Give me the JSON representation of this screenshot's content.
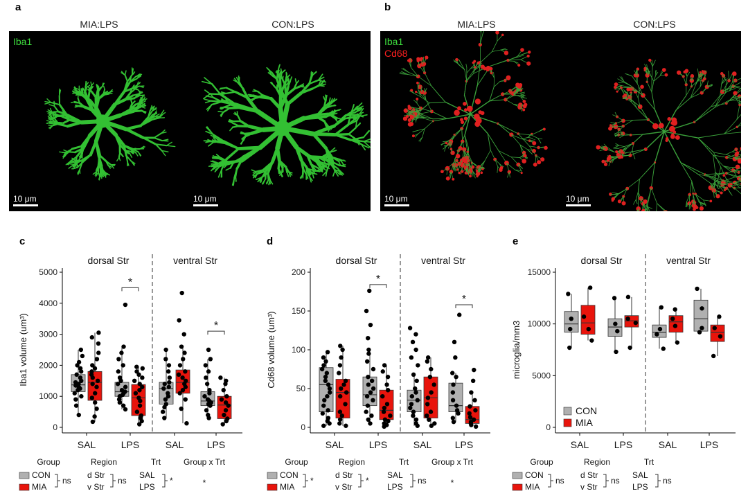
{
  "panels": {
    "a": {
      "label": "a",
      "captions": [
        "MIA:LPS",
        "CON:LPS"
      ],
      "channels": [
        {
          "name": "Iba1",
          "color": "#3ddc3d"
        }
      ],
      "scalebar": "10 μm"
    },
    "b": {
      "label": "b",
      "captions": [
        "MIA:LPS",
        "CON:LPS"
      ],
      "channels": [
        {
          "name": "Iba1",
          "color": "#3ddc3d"
        },
        {
          "name": "Cd68",
          "color": "#ff2020"
        }
      ],
      "scalebar": "10 μm"
    }
  },
  "colors": {
    "con": "#b0b0b0",
    "mia": "#e8140c"
  },
  "chart_data": [
    {
      "panel": "c",
      "type": "box",
      "ylabel": "Iba1 volume (um³)",
      "ylim": [
        0,
        5000
      ],
      "yticks": [
        0,
        1000,
        2000,
        3000,
        4000,
        5000
      ],
      "regions": [
        "dorsal Str",
        "ventral Str"
      ],
      "categories": [
        "SAL",
        "LPS",
        "SAL",
        "LPS"
      ],
      "groups": [
        "CON",
        "MIA"
      ],
      "boxes": [
        {
          "cat": 0,
          "group": "CON",
          "q1": 1150,
          "med": 1370,
          "q3": 1700,
          "lo": 400,
          "hi": 2500,
          "pts": [
            400,
            700,
            900,
            1000,
            1100,
            1200,
            1250,
            1300,
            1350,
            1400,
            1450,
            1500,
            1600,
            1700,
            1800,
            1900,
            2000,
            2100,
            2300,
            2500
          ]
        },
        {
          "cat": 0,
          "group": "MIA",
          "q1": 870,
          "med": 1450,
          "q3": 1800,
          "lo": 180,
          "hi": 3050,
          "pts": [
            180,
            350,
            600,
            800,
            950,
            1100,
            1300,
            1400,
            1500,
            1600,
            1700,
            1800,
            1900,
            2000,
            2200,
            2400,
            2700,
            2900,
            3050
          ]
        },
        {
          "cat": 1,
          "group": "CON",
          "q1": 1000,
          "med": 1150,
          "q3": 1450,
          "lo": 580,
          "hi": 2600,
          "pts": [
            580,
            700,
            800,
            900,
            1000,
            1050,
            1100,
            1150,
            1200,
            1300,
            1400,
            1500,
            1600,
            1800,
            2000,
            2200,
            2400,
            2600,
            3950
          ]
        },
        {
          "cat": 1,
          "group": "MIA",
          "q1": 380,
          "med": 950,
          "q3": 1380,
          "lo": 100,
          "hi": 1950,
          "pts": [
            100,
            200,
            300,
            380,
            500,
            700,
            850,
            950,
            1100,
            1200,
            1300,
            1400,
            1500,
            1600,
            1700,
            1800,
            1900,
            1950
          ]
        },
        {
          "cat": 2,
          "group": "CON",
          "q1": 750,
          "med": 1250,
          "q3": 1450,
          "lo": 300,
          "hi": 2500,
          "pts": [
            300,
            500,
            650,
            750,
            900,
            1000,
            1100,
            1250,
            1300,
            1400,
            1450,
            1600,
            1800,
            2000,
            2200,
            2500
          ]
        },
        {
          "cat": 2,
          "group": "MIA",
          "q1": 1100,
          "med": 1450,
          "q3": 1850,
          "lo": 130,
          "hi": 2600,
          "pts": [
            130,
            600,
            900,
            1100,
            1200,
            1300,
            1400,
            1500,
            1600,
            1700,
            1800,
            2000,
            2200,
            2400,
            2600,
            3000,
            3450,
            4330
          ]
        },
        {
          "cat": 3,
          "group": "CON",
          "q1": 700,
          "med": 850,
          "q3": 1150,
          "lo": 300,
          "hi": 2200,
          "pts": [
            300,
            400,
            550,
            700,
            750,
            800,
            850,
            900,
            1000,
            1100,
            1200,
            1400,
            1600,
            1800,
            2000,
            2200,
            2500
          ]
        },
        {
          "cat": 3,
          "group": "MIA",
          "q1": 280,
          "med": 720,
          "q3": 1000,
          "lo": 100,
          "hi": 1600,
          "pts": [
            100,
            200,
            280,
            400,
            550,
            700,
            800,
            900,
            1000,
            1200,
            1400,
            1500,
            1600
          ]
        }
      ],
      "sig": [
        {
          "cat": 1,
          "y": 4500,
          "text": "*"
        },
        {
          "cat": 3,
          "y": 3100,
          "text": "*"
        }
      ],
      "stats": {
        "headers": [
          "Group",
          "Region",
          "Trt",
          "Group x Trt"
        ],
        "factors": [
          {
            "levels": [
              "CON",
              "MIA"
            ],
            "sig": "ns",
            "legend": true
          },
          {
            "levels": [
              "d Str",
              "v Str"
            ],
            "sig": "ns"
          },
          {
            "levels": [
              "SAL",
              "LPS"
            ],
            "sig": "*"
          },
          {
            "levels": [],
            "sig": "*"
          }
        ]
      }
    },
    {
      "panel": "d",
      "type": "box",
      "ylabel": "Cd68 volume (um³)",
      "ylim": [
        0,
        200
      ],
      "yticks": [
        0,
        50,
        100,
        150,
        200
      ],
      "regions": [
        "dorsal Str",
        "ventral Str"
      ],
      "categories": [
        "SAL",
        "LPS",
        "SAL",
        "LPS"
      ],
      "groups": [
        "CON",
        "MIA"
      ],
      "boxes": [
        {
          "cat": 0,
          "group": "CON",
          "q1": 20,
          "med": 55,
          "q3": 77,
          "lo": 2,
          "hi": 97,
          "pts": [
            2,
            5,
            8,
            12,
            18,
            22,
            28,
            35,
            40,
            45,
            50,
            55,
            60,
            65,
            70,
            75,
            80,
            85,
            90,
            97
          ]
        },
        {
          "cat": 0,
          "group": "MIA",
          "q1": 12,
          "med": 45,
          "q3": 62,
          "lo": 2,
          "hi": 105,
          "pts": [
            2,
            5,
            10,
            15,
            20,
            30,
            40,
            45,
            50,
            55,
            60,
            70,
            80,
            90,
            100,
            105
          ]
        },
        {
          "cat": 1,
          "group": "CON",
          "q1": 28,
          "med": 42,
          "q3": 65,
          "lo": 5,
          "hi": 100,
          "pts": [
            5,
            10,
            15,
            20,
            28,
            35,
            40,
            45,
            50,
            55,
            60,
            65,
            75,
            85,
            95,
            100,
            115,
            132,
            150,
            176
          ]
        },
        {
          "cat": 1,
          "group": "MIA",
          "q1": 10,
          "med": 22,
          "q3": 48,
          "lo": 1,
          "hi": 80,
          "pts": [
            1,
            3,
            5,
            8,
            10,
            15,
            20,
            25,
            30,
            40,
            48,
            55,
            65,
            72,
            80
          ]
        },
        {
          "cat": 2,
          "group": "CON",
          "q1": 20,
          "med": 35,
          "q3": 48,
          "lo": 2,
          "hi": 68,
          "pts": [
            2,
            5,
            10,
            15,
            20,
            25,
            30,
            35,
            40,
            45,
            50,
            60,
            68,
            80,
            90,
            100,
            110,
            120,
            128
          ]
        },
        {
          "cat": 2,
          "group": "MIA",
          "q1": 12,
          "med": 38,
          "q3": 65,
          "lo": 2,
          "hi": 90,
          "pts": [
            2,
            5,
            10,
            15,
            20,
            30,
            38,
            45,
            55,
            65,
            75,
            85,
            90
          ]
        },
        {
          "cat": 3,
          "group": "CON",
          "q1": 20,
          "med": 28,
          "q3": 57,
          "lo": 7,
          "hi": 70,
          "pts": [
            7,
            12,
            18,
            22,
            28,
            35,
            45,
            55,
            65,
            70,
            90,
            110,
            145
          ]
        },
        {
          "cat": 3,
          "group": "MIA",
          "q1": 5,
          "med": 10,
          "q3": 27,
          "lo": 1,
          "hi": 45,
          "pts": [
            1,
            3,
            5,
            7,
            10,
            13,
            18,
            22,
            27,
            35,
            45,
            60,
            74
          ]
        }
      ],
      "sig": [
        {
          "cat": 1,
          "y": 184,
          "text": "*"
        },
        {
          "cat": 3,
          "y": 158,
          "text": "*"
        }
      ],
      "stats": {
        "headers": [
          "Group",
          "Region",
          "Trt",
          "Group x Trt"
        ],
        "factors": [
          {
            "levels": [
              "CON",
              "MIA"
            ],
            "sig": "*",
            "legend": true
          },
          {
            "levels": [
              "d Str",
              "v Str"
            ],
            "sig": "*"
          },
          {
            "levels": [
              "SAL",
              "LPS"
            ],
            "sig": "ns"
          },
          {
            "levels": [],
            "sig": "*"
          }
        ]
      }
    },
    {
      "panel": "e",
      "type": "box",
      "ylabel": "microglia/mm3",
      "ylim": [
        0,
        15000
      ],
      "yticks": [
        0,
        5000,
        10000,
        15000
      ],
      "regions": [
        "dorsal Str",
        "ventral Str"
      ],
      "categories": [
        "SAL",
        "LPS",
        "SAL",
        "LPS"
      ],
      "groups": [
        "CON",
        "MIA"
      ],
      "legend": [
        "CON",
        "MIA"
      ],
      "boxes": [
        {
          "cat": 0,
          "group": "CON",
          "q1": 9200,
          "med": 10000,
          "q3": 11200,
          "lo": 7700,
          "hi": 12900,
          "pts": [
            7700,
            9500,
            10500,
            12900
          ]
        },
        {
          "cat": 0,
          "group": "MIA",
          "q1": 9000,
          "med": 10100,
          "q3": 11800,
          "lo": 8400,
          "hi": 13500,
          "pts": [
            8400,
            9500,
            10700,
            13500
          ]
        },
        {
          "cat": 1,
          "group": "CON",
          "q1": 8800,
          "med": 9700,
          "q3": 10500,
          "lo": 7300,
          "hi": 12500,
          "pts": [
            7300,
            9300,
            10000,
            12500
          ]
        },
        {
          "cat": 1,
          "group": "MIA",
          "q1": 9700,
          "med": 10300,
          "q3": 10800,
          "lo": 7700,
          "hi": 12600,
          "pts": [
            7700,
            10100,
            10500,
            12600
          ]
        },
        {
          "cat": 2,
          "group": "CON",
          "q1": 8700,
          "med": 9200,
          "q3": 9900,
          "lo": 7600,
          "hi": 11600,
          "pts": [
            7600,
            9000,
            9500,
            11600
          ]
        },
        {
          "cat": 2,
          "group": "MIA",
          "q1": 9200,
          "med": 10200,
          "q3": 10800,
          "lo": 8200,
          "hi": 11400,
          "pts": [
            8200,
            9800,
            10500,
            11400
          ]
        },
        {
          "cat": 3,
          "group": "CON",
          "q1": 9300,
          "med": 10500,
          "q3": 12300,
          "lo": 9200,
          "hi": 13400,
          "pts": [
            9200,
            9600,
            11500,
            13400
          ]
        },
        {
          "cat": 3,
          "group": "MIA",
          "q1": 8300,
          "med": 9200,
          "q3": 9900,
          "lo": 6900,
          "hi": 10700,
          "pts": [
            6900,
            8800,
            9600,
            10700
          ]
        }
      ],
      "sig": [],
      "stats": {
        "headers": [
          "Group",
          "Region",
          "Trt",
          ""
        ],
        "factors": [
          {
            "levels": [
              "CON",
              "MIA"
            ],
            "sig": "ns",
            "legend": true
          },
          {
            "levels": [
              "d Str",
              "v Str"
            ],
            "sig": "ns"
          },
          {
            "levels": [
              "SAL",
              "LPS"
            ],
            "sig": "ns"
          },
          {
            "levels": [],
            "sig": ""
          }
        ]
      }
    }
  ],
  "chart_labels": [
    "c",
    "d",
    "e"
  ]
}
